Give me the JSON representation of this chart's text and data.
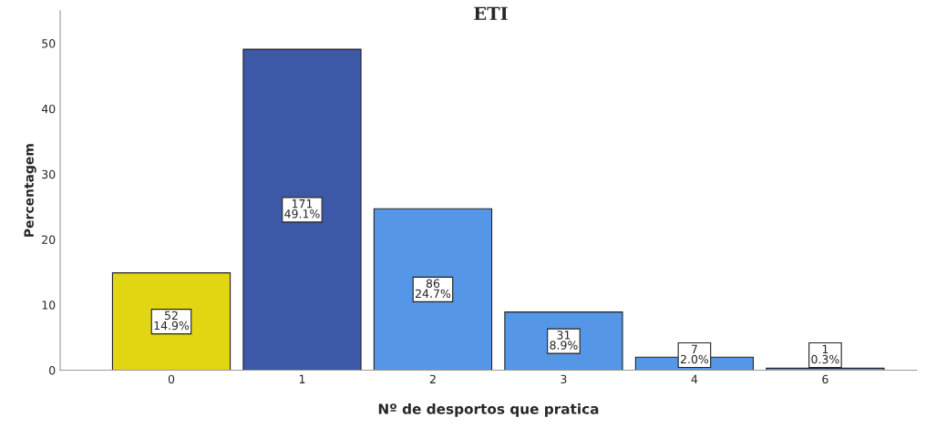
{
  "chart_data": {
    "type": "bar",
    "title": "ETI",
    "xlabel": "Nº de desportos que pratica",
    "ylabel": "Percentagem",
    "categories": [
      "0",
      "1",
      "2",
      "3",
      "4",
      "6"
    ],
    "values": [
      14.9,
      49.1,
      24.7,
      8.9,
      2.0,
      0.3
    ],
    "colors": [
      "#e2d512",
      "#3e58a8",
      "#5596e6",
      "#5596e6",
      "#5596e6",
      "#5596e6"
    ],
    "value_labels": [
      "52\n14.9%",
      "171\n49.1%",
      "86\n24.7%",
      "31\n8.9%",
      "7\n2.0%",
      "1\n0.3%"
    ],
    "ylim": [
      0,
      55
    ],
    "yticks": [
      0,
      10,
      20,
      30,
      40,
      50
    ],
    "grid": false
  }
}
